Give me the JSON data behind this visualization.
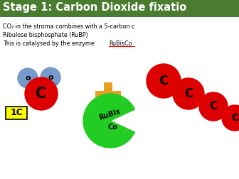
{
  "title": "Stage 1: Carbon Dioxide fixatio",
  "title_bg": "#4a7c2f",
  "title_color": "#ffffff",
  "text_line1": "CO₂ in the stroma combines with a 5-carbon c",
  "text_line2": "Ribulose bisphosphate (RuBP)",
  "text_line3a": "This is catalysed by the enzyme ",
  "text_line3b": "RuBisCo",
  "label_1c": "1C",
  "label_1c_bg": "#ffff00",
  "rubisco_text1": "RuBis",
  "rubisco_text2": "Co",
  "rubisco_color": "#22cc22",
  "co2_circle_color": "#dd0000",
  "o_circle_color": "#7799cc",
  "rubp_circle_color": "#dd0000",
  "plus_color": "#e8a020",
  "line_color": "#000000",
  "body_bg": "#ffffff"
}
